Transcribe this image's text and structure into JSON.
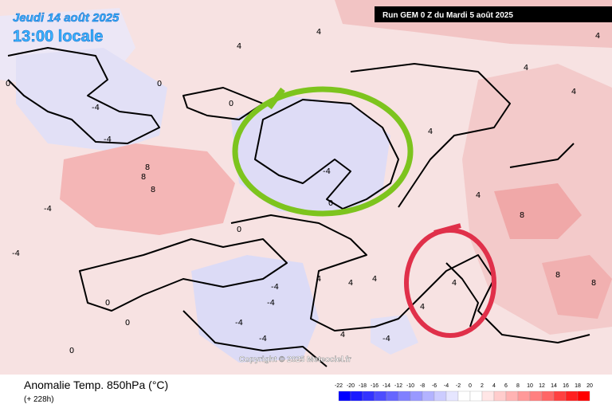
{
  "header": {
    "date": "Jeudi 14 août 2025",
    "time": "13:00 locale",
    "run": "Run GEM 0 Z du Mardi 5 août 2025"
  },
  "footer": {
    "title": "Anomalie Temp. 850hPa (°C)",
    "lead": "(+ 228h)"
  },
  "copyright": "Copyright © 2025 Meteociel.fr",
  "contour_labels": [
    0,
    -4,
    -4,
    8,
    8,
    8,
    -4,
    -4,
    0,
    -4,
    -4,
    -4,
    -4,
    0,
    0,
    0,
    4,
    4,
    4,
    4,
    -4,
    4,
    4,
    4,
    8,
    8,
    8,
    4,
    4,
    4,
    4,
    -4,
    0,
    0,
    0,
    4,
    4
  ],
  "colorbar": {
    "ticks": [
      -22,
      -20,
      -18,
      -16,
      -14,
      -12,
      -10,
      -8,
      -6,
      -4,
      -2,
      0,
      2,
      4,
      6,
      8,
      10,
      12,
      14,
      16,
      18,
      20
    ],
    "colors": [
      "#0000ff",
      "#1a1aff",
      "#3333ff",
      "#4d4dff",
      "#6666ff",
      "#8080ff",
      "#9999ff",
      "#b3b3ff",
      "#ccccff",
      "#e6e6ff",
      "#ffffff",
      "#ffffff",
      "#ffe6e6",
      "#ffcccc",
      "#ffb3b3",
      "#ff9999",
      "#ff8080",
      "#ff6666",
      "#ff4040",
      "#ff2020",
      "#ff0000"
    ]
  }
}
